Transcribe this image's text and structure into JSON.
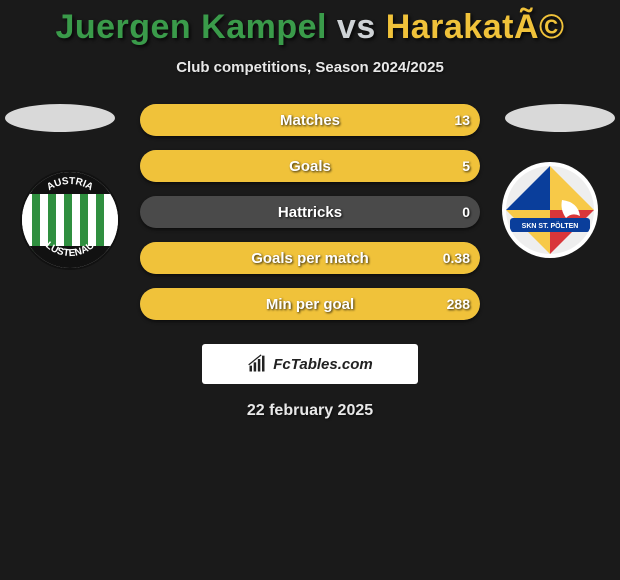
{
  "header": {
    "player1": "Juergen Kampel",
    "vs": "vs",
    "player2": "HarakatÃ©",
    "player1_color": "#3a9b4a",
    "vs_color": "#cfd3d6",
    "player2_color": "#f0c23a",
    "subtitle": "Club competitions, Season 2024/2025"
  },
  "ellipses": {
    "left_color": "#d9d9d9",
    "right_color": "#d9d9d9"
  },
  "team1_badge": {
    "stripe_color": "#2f8f3f",
    "bg_color": "#ffffff",
    "ring_color": "#1a1a1a",
    "text_top": "AUSTRIA",
    "text_bottom": "LUSTENAU"
  },
  "team2_badge": {
    "stripe_blue": "#0a3e9b",
    "stripe_yellow": "#f7c948",
    "stripe_red": "#d9363a",
    "eagle_color": "#ffffff",
    "ring_color": "#ffffff",
    "banner_text": "SKN ST. PÖLTEN"
  },
  "stats": {
    "left_fill_color": "#2f8f3f",
    "right_fill_color": "#f0c23a",
    "bg_color": "#4a4a4a",
    "rows": [
      {
        "label": "Matches",
        "left": "",
        "right": "13",
        "left_pct": 0,
        "right_pct": 100
      },
      {
        "label": "Goals",
        "left": "",
        "right": "5",
        "left_pct": 0,
        "right_pct": 100
      },
      {
        "label": "Hattricks",
        "left": "",
        "right": "0",
        "left_pct": 0,
        "right_pct": 0
      },
      {
        "label": "Goals per match",
        "left": "",
        "right": "0.38",
        "left_pct": 0,
        "right_pct": 100
      },
      {
        "label": "Min per goal",
        "left": "",
        "right": "288",
        "left_pct": 0,
        "right_pct": 100
      }
    ]
  },
  "watermark": {
    "text": "FcTables.com",
    "icon_name": "bar-chart-icon"
  },
  "date": "22 february 2025"
}
